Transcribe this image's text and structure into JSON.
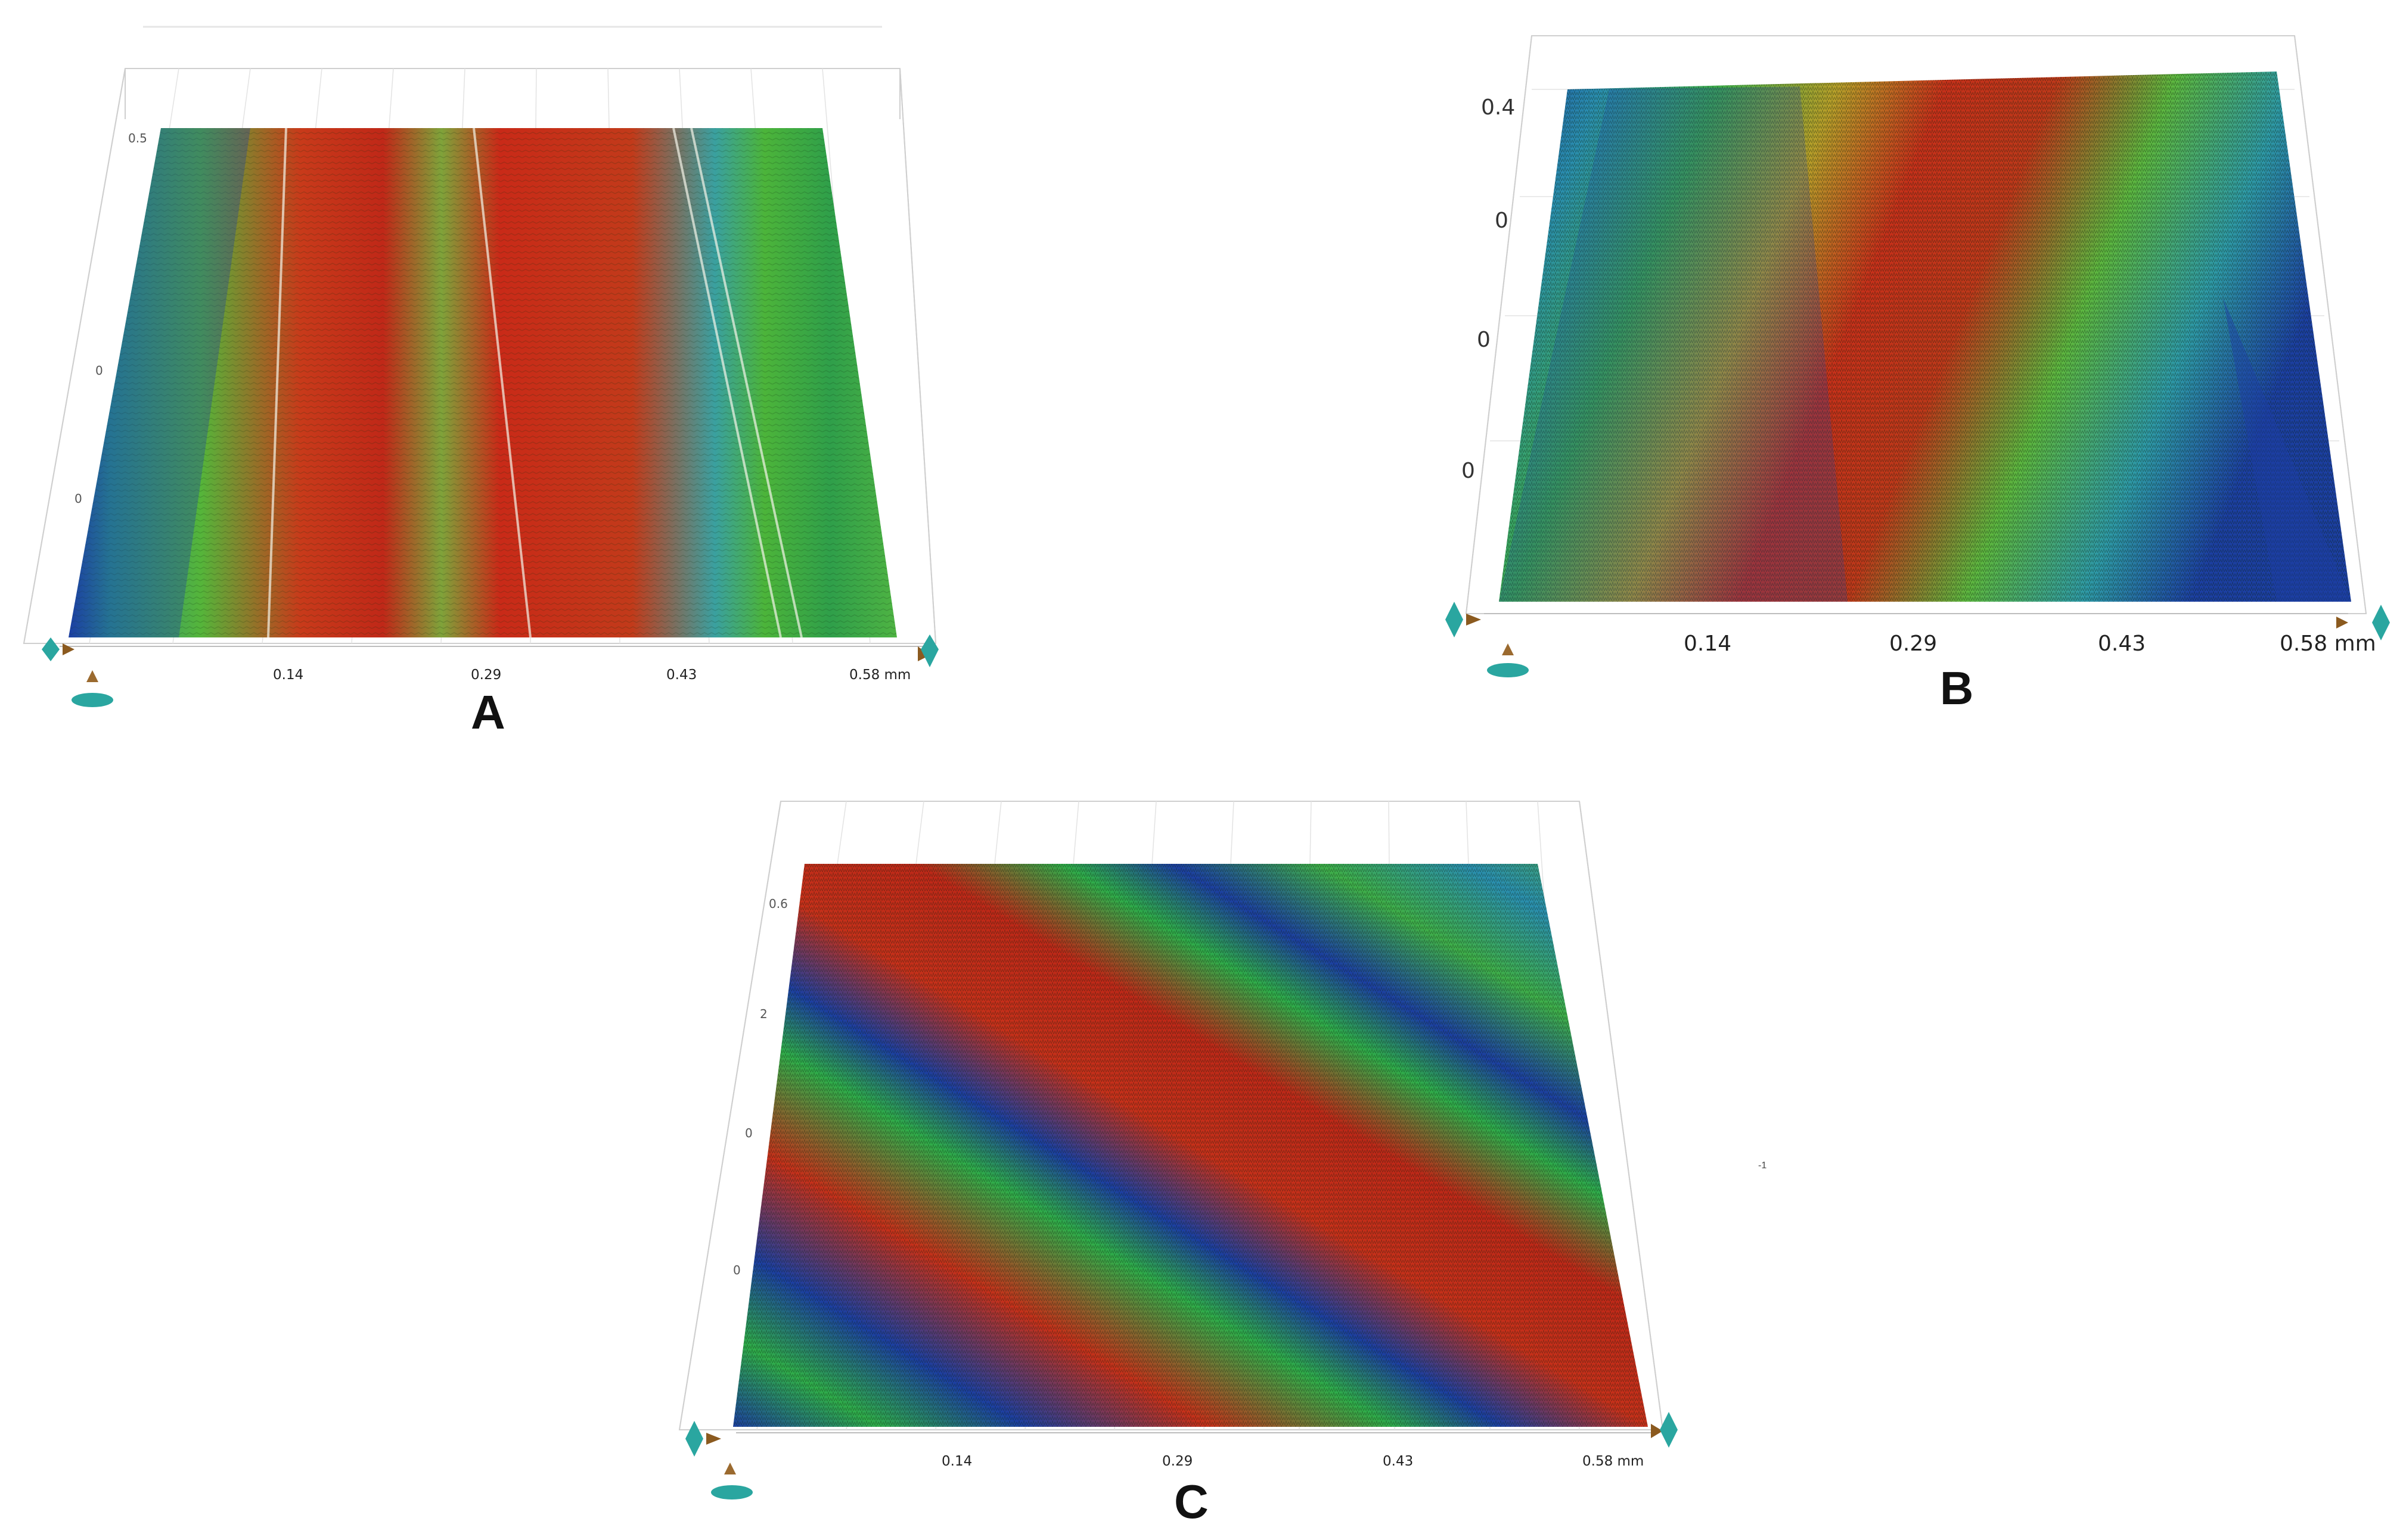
{
  "panels": [
    {
      "label": "A",
      "x_ticks": [
        "0.14",
        "0.29",
        "0.43",
        "0.58 mm"
      ],
      "side_labels": [
        "0.5",
        "0",
        "0"
      ],
      "pattern": "vertical red bands on green, blue at left edge",
      "colors": {
        "low": "#1c3fa3",
        "mid": "#2fb04a",
        "high": "#c8281a"
      }
    },
    {
      "label": "B",
      "x_ticks": [
        "0.14",
        "0.29",
        "0.43",
        "0.58 mm"
      ],
      "side_labels": [
        "0.4",
        "0",
        "0",
        "0"
      ],
      "pattern": "rough diagonal red region on green/blue",
      "colors": {
        "low": "#1c3fa3",
        "mid": "#2fb04a",
        "high": "#c8281a"
      }
    },
    {
      "label": "C",
      "x_ticks": [
        "0.14",
        "0.29",
        "0.43",
        "0.58 mm"
      ],
      "side_labels": [
        "0.6",
        "2",
        "0",
        "0"
      ],
      "pattern": "diagonal red/green/blue stripes",
      "colors": {
        "low": "#1c3fa3",
        "mid": "#2fb04a",
        "high": "#c8281a"
      }
    }
  ],
  "stray_mark": "-1"
}
